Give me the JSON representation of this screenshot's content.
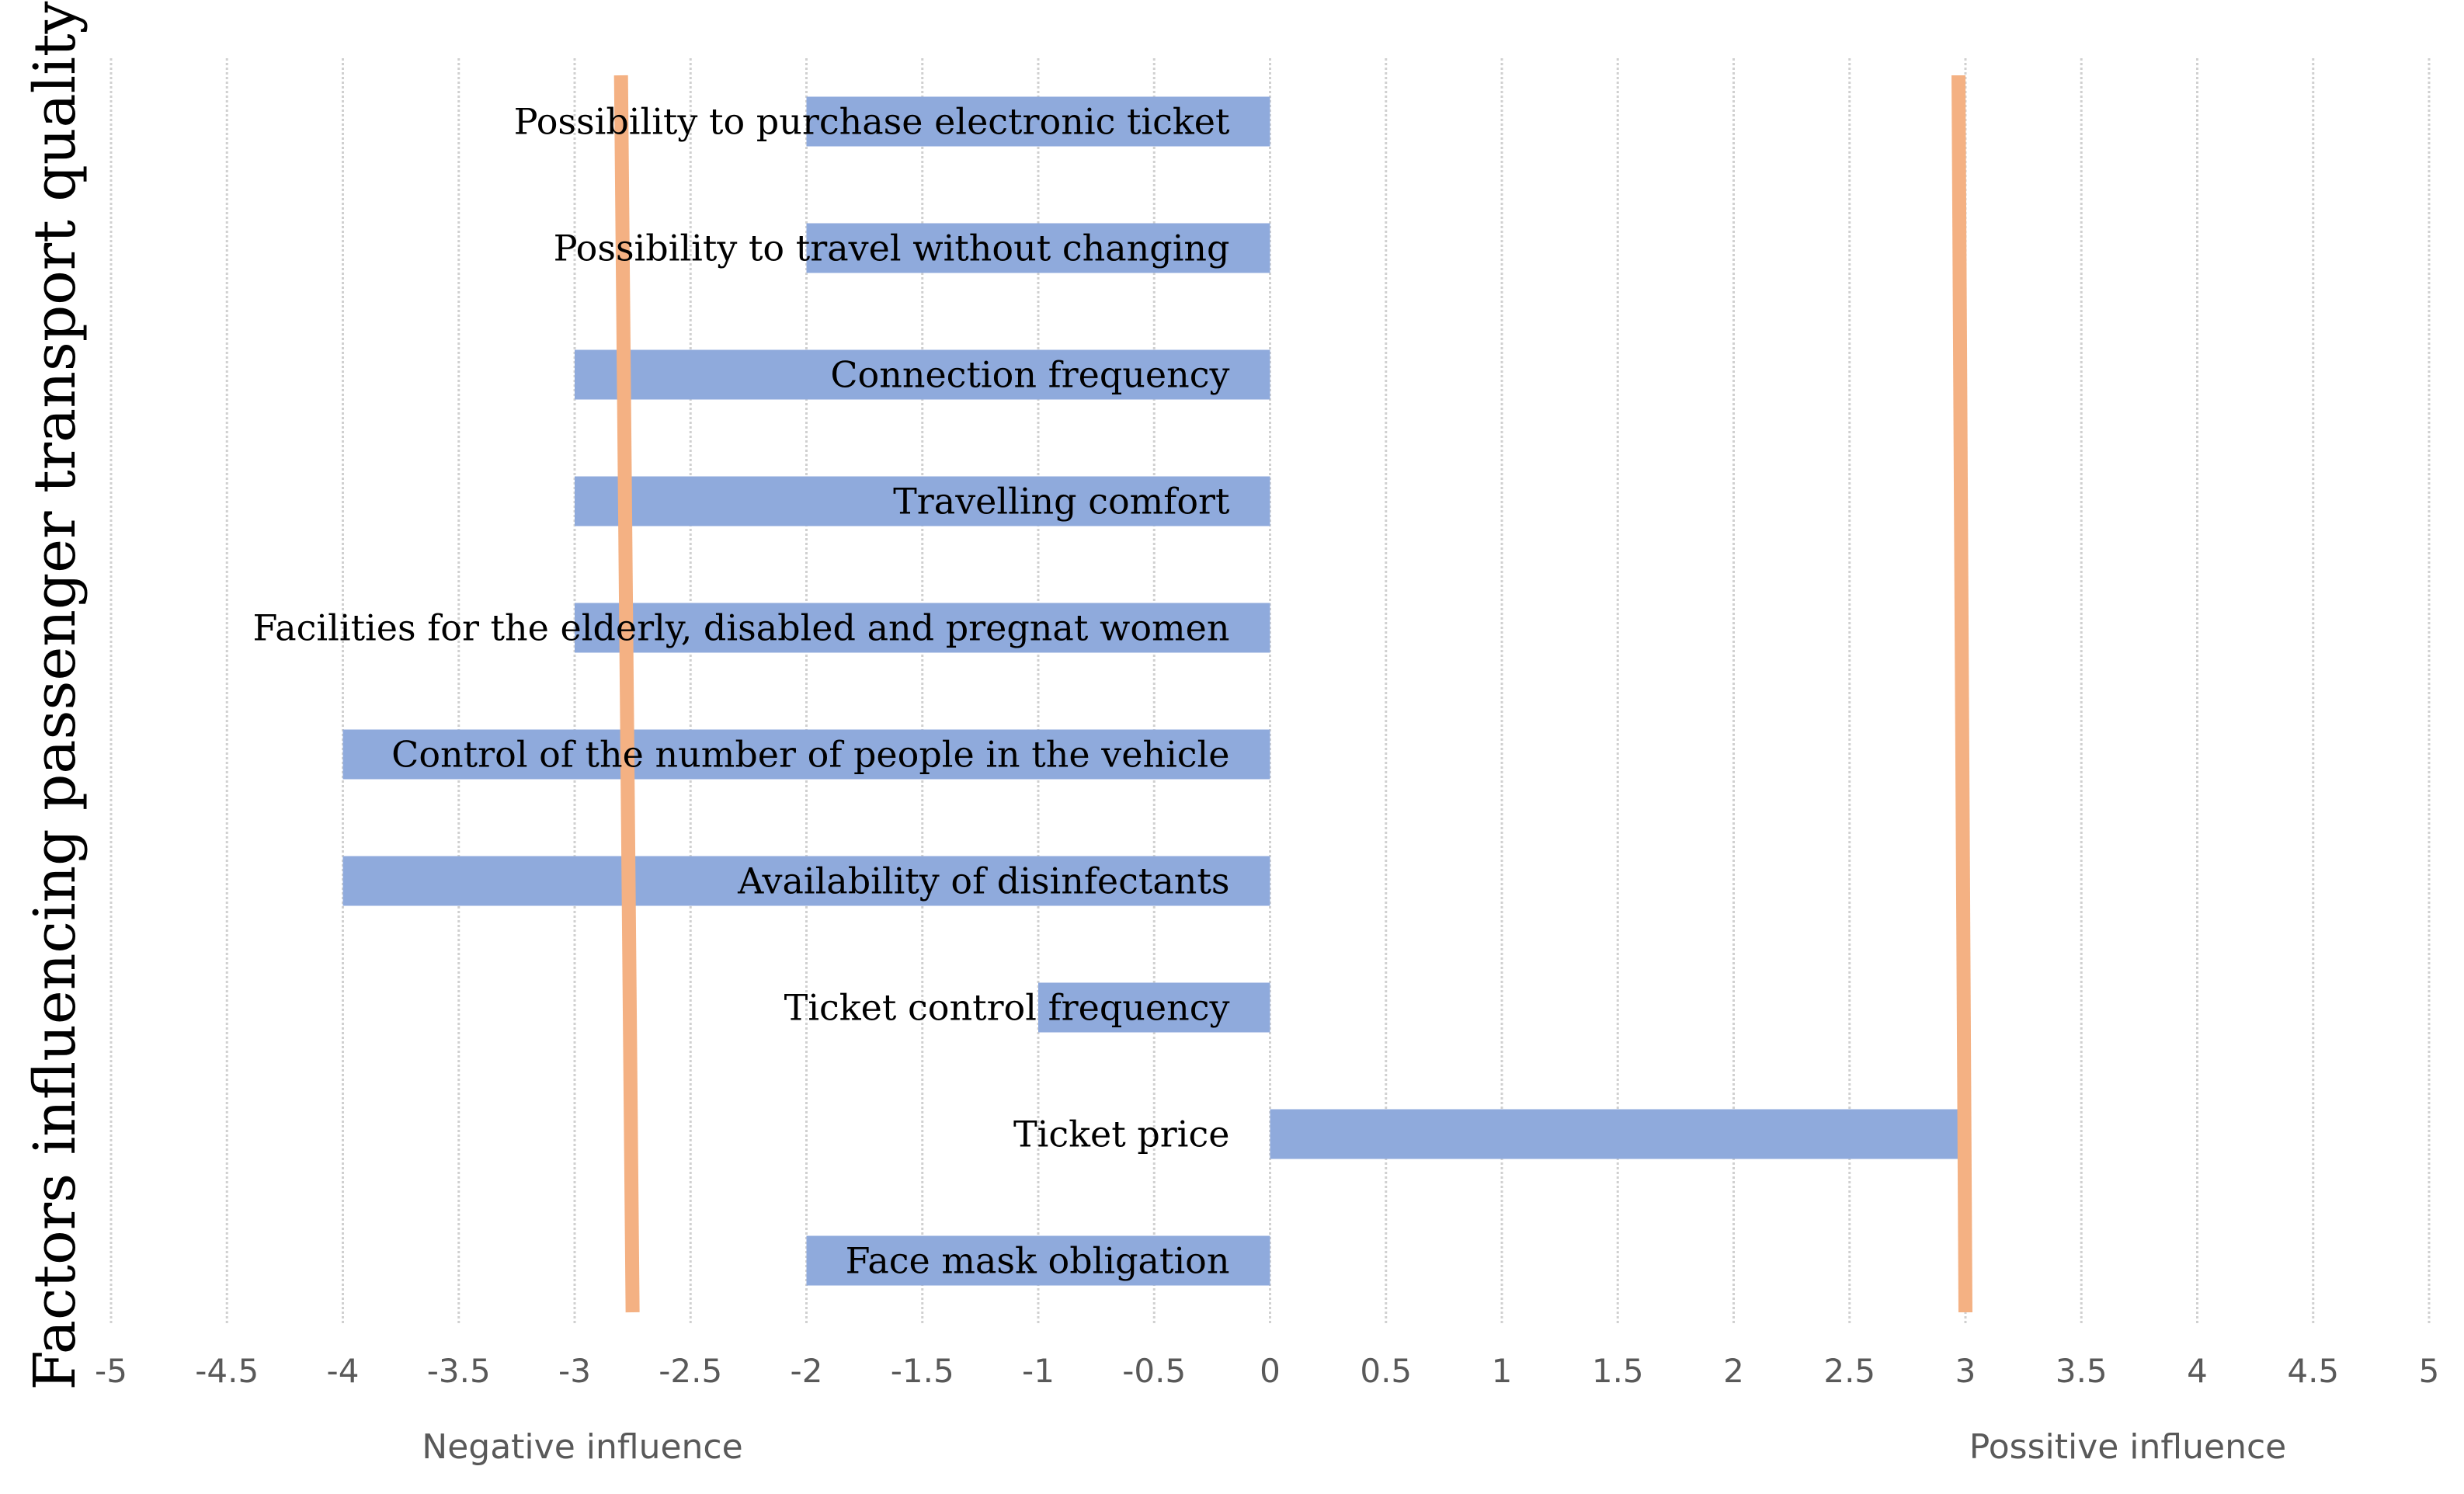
{
  "chart_data": {
    "type": "bar",
    "orientation": "horizontal",
    "title": "",
    "ylabel": "Factors influencing passenger transport quality",
    "xlabel": "",
    "xlim": [
      -5,
      5
    ],
    "xticks": [
      "-5",
      "-4.5",
      "-4",
      "-3.5",
      "-3",
      "-2.5",
      "-2",
      "-1.5",
      "-1",
      "-0.5",
      "0",
      "0.5",
      "1",
      "1.5",
      "2",
      "2.5",
      "3",
      "3.5",
      "4",
      "4.5",
      "5"
    ],
    "tick_values": [
      -5,
      -4.5,
      -4,
      -3.5,
      -3,
      -2.5,
      -2,
      -1.5,
      -1,
      -0.5,
      0,
      0.5,
      1,
      1.5,
      2,
      2.5,
      3,
      3.5,
      4,
      4.5,
      5
    ],
    "grid": true,
    "categories": [
      "Possibility to purchase electronic ticket",
      "Possibility to travel without changing",
      "Connection frequency",
      "Travelling comfort",
      "Facilities for the elderly, disabled and pregnat women",
      "Control of the number of people in the vehicle",
      "Availability of disinfectants",
      "Ticket control frequency",
      "Ticket price",
      "Face mask obligation"
    ],
    "values": [
      -2,
      -2,
      -3,
      -3,
      -3,
      -4,
      -4,
      -1,
      3,
      -2
    ],
    "bar_color": "#8faadc",
    "reference_lines": [
      {
        "name": "negative-threshold",
        "x_top": -2.8,
        "x_bottom": -2.75,
        "color": "#f4b183"
      },
      {
        "name": "positive-threshold",
        "x_top": 2.97,
        "x_bottom": 3.0,
        "color": "#f4b183"
      }
    ],
    "annotations": {
      "negative": "Negative influence",
      "positive": "Possitive influence"
    }
  }
}
